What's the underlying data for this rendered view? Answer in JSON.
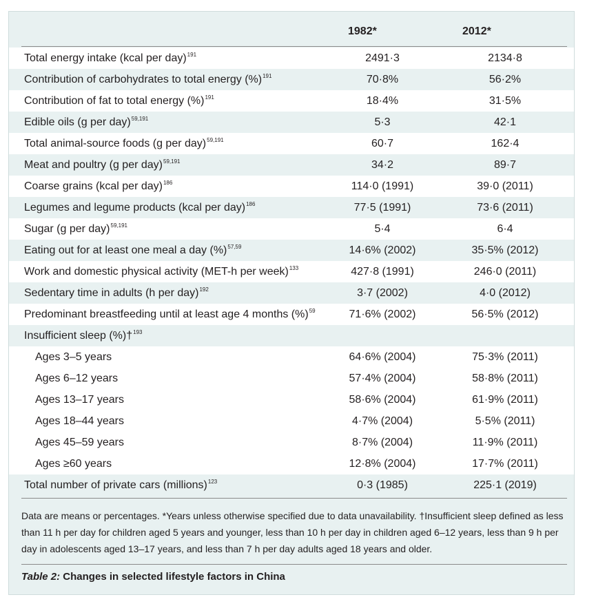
{
  "header": {
    "col1": "1982*",
    "col2": "2012*"
  },
  "rows": [
    {
      "label": "Total energy intake (kcal per day)",
      "ref": "191",
      "v1": "2491·3",
      "v2": "2134·8",
      "bg": "white"
    },
    {
      "label": "Contribution of carbohydrates to total energy (%)",
      "ref": "191",
      "v1": "70·8%",
      "v2": "56·2%",
      "bg": "tint"
    },
    {
      "label": "Contribution of fat to total energy (%)",
      "ref": "191",
      "v1": "18·4%",
      "v2": "31·5%",
      "bg": "white"
    },
    {
      "label": "Edible oils (g per day)",
      "ref": "59,191",
      "v1": "5·3",
      "v2": "42·1",
      "bg": "tint"
    },
    {
      "label": "Total animal-source foods (g per day)",
      "ref": "59,191",
      "v1": "60·7",
      "v2": "162·4",
      "bg": "white"
    },
    {
      "label": "Meat and poultry (g per day)",
      "ref": "59,191",
      "v1": "34·2",
      "v2": "89·7",
      "bg": "tint"
    },
    {
      "label": "Coarse grains (kcal per day)",
      "ref": "186",
      "v1": "114·0 (1991)",
      "v2": "39·0 (2011)",
      "bg": "white"
    },
    {
      "label": "Legumes and legume products (kcal per day)",
      "ref": "186",
      "v1": "77·5 (1991)",
      "v2": "73·6 (2011)",
      "bg": "tint"
    },
    {
      "label": "Sugar (g per day)",
      "ref": "59,191",
      "v1": "5·4",
      "v2": "6·4",
      "bg": "white"
    },
    {
      "label": "Eating out for at least one meal a day (%)",
      "ref": "57,59",
      "v1": "14·6% (2002)",
      "v2": "35·5% (2012)",
      "bg": "tint"
    },
    {
      "label": "Work and domestic physical activity (MET-h per week)",
      "ref": "133",
      "v1": "427·8 (1991)",
      "v2": "246·0 (2011)",
      "bg": "white"
    },
    {
      "label": "Sedentary time in adults (h per day)",
      "ref": "192",
      "v1": "3·7 (2002)",
      "v2": "4·0 (2012)",
      "bg": "tint"
    },
    {
      "label": "Predominant breastfeeding until at least age 4 months (%)",
      "ref": "59",
      "v1": "71·6% (2002)",
      "v2": "56·5% (2012)",
      "bg": "white"
    },
    {
      "label": "Insufficient sleep (%)†",
      "ref": "193",
      "v1": "",
      "v2": "",
      "bg": "tint"
    },
    {
      "label": "Ages 3–5 years",
      "ref": "",
      "v1": "64·6% (2004)",
      "v2": "75·3% (2011)",
      "bg": "white",
      "sub": true
    },
    {
      "label": "Ages 6–12 years",
      "ref": "",
      "v1": "57·4% (2004)",
      "v2": "58·8% (2011)",
      "bg": "white",
      "sub": true
    },
    {
      "label": "Ages 13–17 years",
      "ref": "",
      "v1": "58·6% (2004)",
      "v2": "61·9% (2011)",
      "bg": "white",
      "sub": true
    },
    {
      "label": "Ages 18–44 years",
      "ref": "",
      "v1": "4·7% (2004)",
      "v2": "5·5% (2011)",
      "bg": "white",
      "sub": true
    },
    {
      "label": "Ages 45–59 years",
      "ref": "",
      "v1": "8·7% (2004)",
      "v2": "11·9% (2011)",
      "bg": "white",
      "sub": true
    },
    {
      "label": "Ages ≥60 years",
      "ref": "",
      "v1": "12·8% (2004)",
      "v2": "17·7% (2011)",
      "bg": "white",
      "sub": true
    },
    {
      "label": "Total number of private cars (millions)",
      "ref": "123",
      "v1": "0·3 (1985)",
      "v2": "225·1 (2019)",
      "bg": "tint"
    }
  ],
  "footnote": "Data are means or percentages. *Years unless otherwise specified due to data unavailability. †Insufficient sleep defined as less than 11 h per day for children aged 5 years and younger, less than 10 h per day in children aged 6–12 years, less than 9 h per day in adolescents aged 13–17 years, and less than 7 h per day adults aged 18 years and older.",
  "caption": {
    "label": "Table 2:",
    "text": " Changes in selected lifestyle factors in China"
  },
  "colors": {
    "panel": "#e8f1f1",
    "row_alt": "#ffffff",
    "text": "#231f20",
    "rule": "#8a8a8a"
  }
}
